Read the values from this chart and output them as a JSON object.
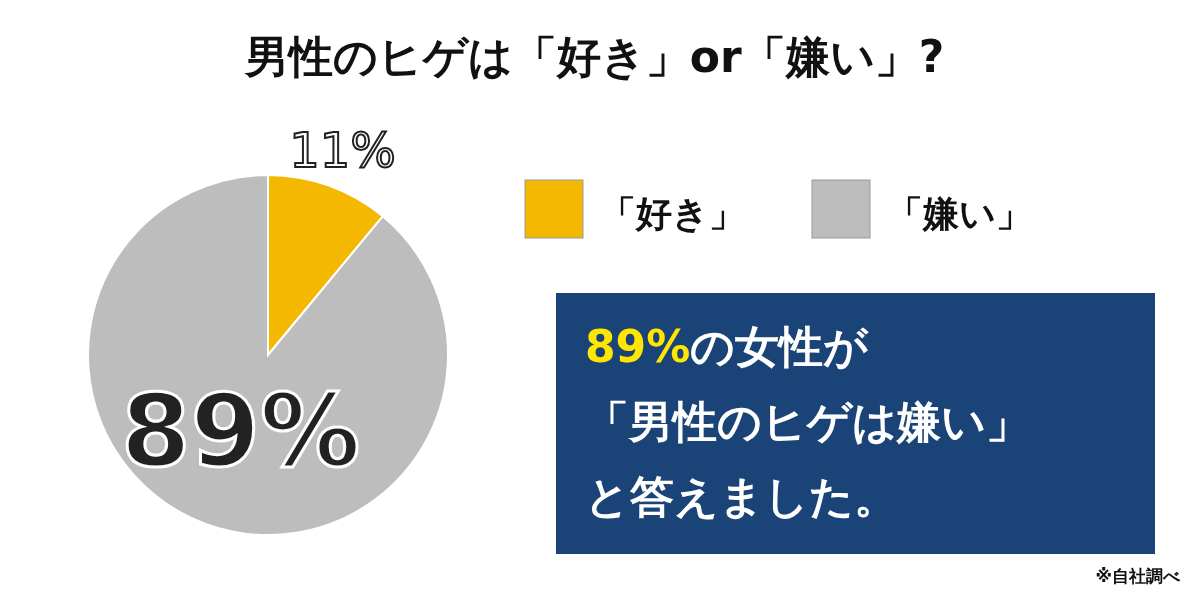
{
  "chart_data": {
    "type": "pie",
    "title": "男性のヒゲは「好き」or「嫌い」?",
    "categories": [
      "「好き」",
      "「嫌い」"
    ],
    "values": [
      11,
      89
    ],
    "colors": [
      "#f5b800",
      "#bdbdbd"
    ],
    "value_labels": [
      "11%",
      "89%"
    ],
    "legend": "top right",
    "annotations": [
      "89%の女性が",
      "「男性のヒゲは嫌い」",
      "と答えました。",
      "※自社調べ"
    ]
  }
}
